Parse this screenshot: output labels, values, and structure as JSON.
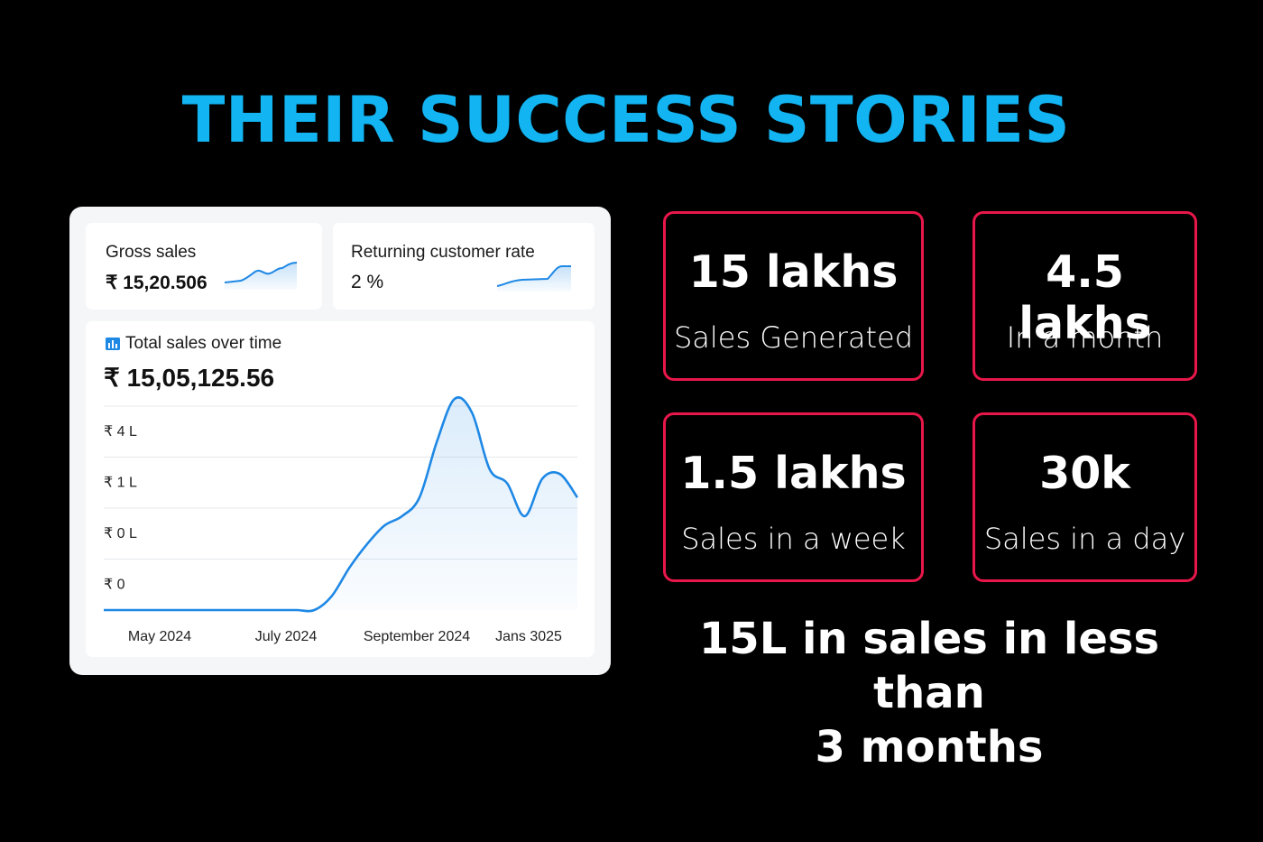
{
  "headline": "THEIR SUCCESS STORIES",
  "dashboard": {
    "gross_sales": {
      "label": "Gross sales",
      "value": "₹ 15,20.506"
    },
    "returning_rate": {
      "label": "Returning customer rate",
      "value": "2 %"
    },
    "total_sales": {
      "title": "Total sales over time",
      "value": "₹ 15,05,125.56"
    }
  },
  "chart_data": {
    "type": "area",
    "title": "Total sales over time",
    "y_tick_labels": [
      "₹ 4 L",
      "₹ 1 L",
      "₹ 0 L",
      "₹ 0"
    ],
    "x_tick_labels": [
      "May 2024",
      "July 2024",
      "September 2024",
      "Jans 3025"
    ],
    "series": [
      {
        "values": [
          0,
          0,
          0,
          0,
          0,
          0,
          0,
          0,
          0,
          0,
          0,
          0,
          0,
          0.3,
          0.9,
          1.4,
          1.8,
          2.0,
          2.4,
          3.6,
          4.5,
          4.2,
          3.0,
          2.7,
          2.0,
          2.8,
          2.9,
          2.4
        ]
      }
    ],
    "accent_color": "#1e88e5"
  },
  "stats": [
    {
      "value": "15 lakhs",
      "label": "Sales Generated"
    },
    {
      "value": "4.5 lakhs",
      "label": "In a month"
    },
    {
      "value": "1.5 lakhs",
      "label": "Sales in a week"
    },
    {
      "value": "30k",
      "label": "Sales in a day"
    }
  ],
  "tagline": {
    "line1": "15L in sales in less than",
    "line2": "3 months"
  },
  "colors": {
    "headline": "#12b4f2",
    "stat_border": "#e8174a",
    "chart_line": "#1e88e5"
  }
}
